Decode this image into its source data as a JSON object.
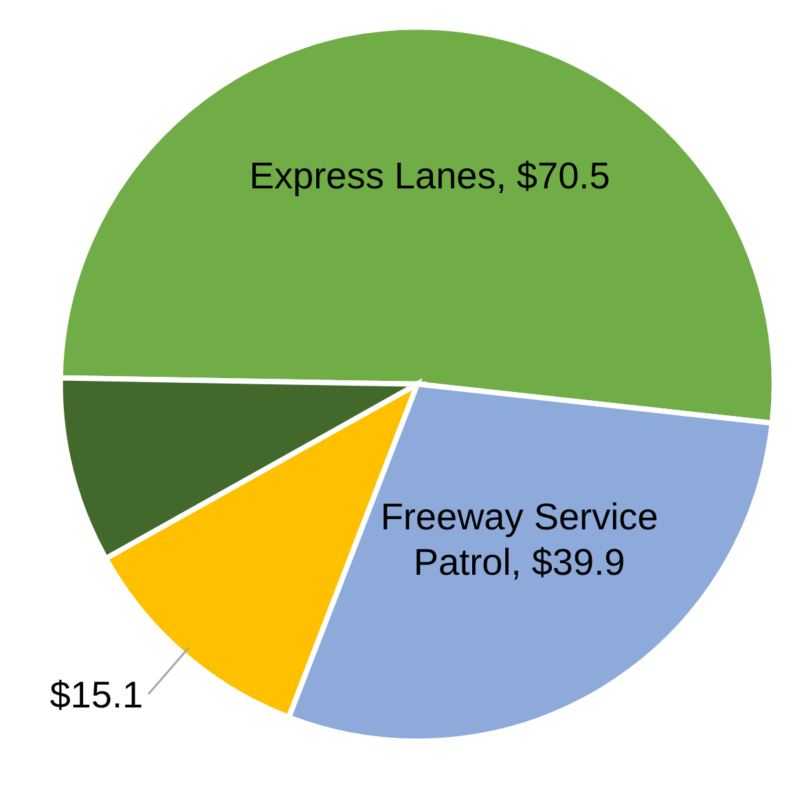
{
  "chart_data": {
    "type": "pie",
    "categories": [
      "Express Lanes",
      "Freeway Service Patrol",
      null,
      null
    ],
    "values": [
      70.5,
      39.9,
      15.1,
      11.5
    ],
    "colors": [
      "#70ad47",
      "#8eaadb",
      "#ffc000",
      "#43682b"
    ],
    "value_labels": [
      "$70.5",
      "$39.9",
      "$15.1",
      null
    ]
  }
}
